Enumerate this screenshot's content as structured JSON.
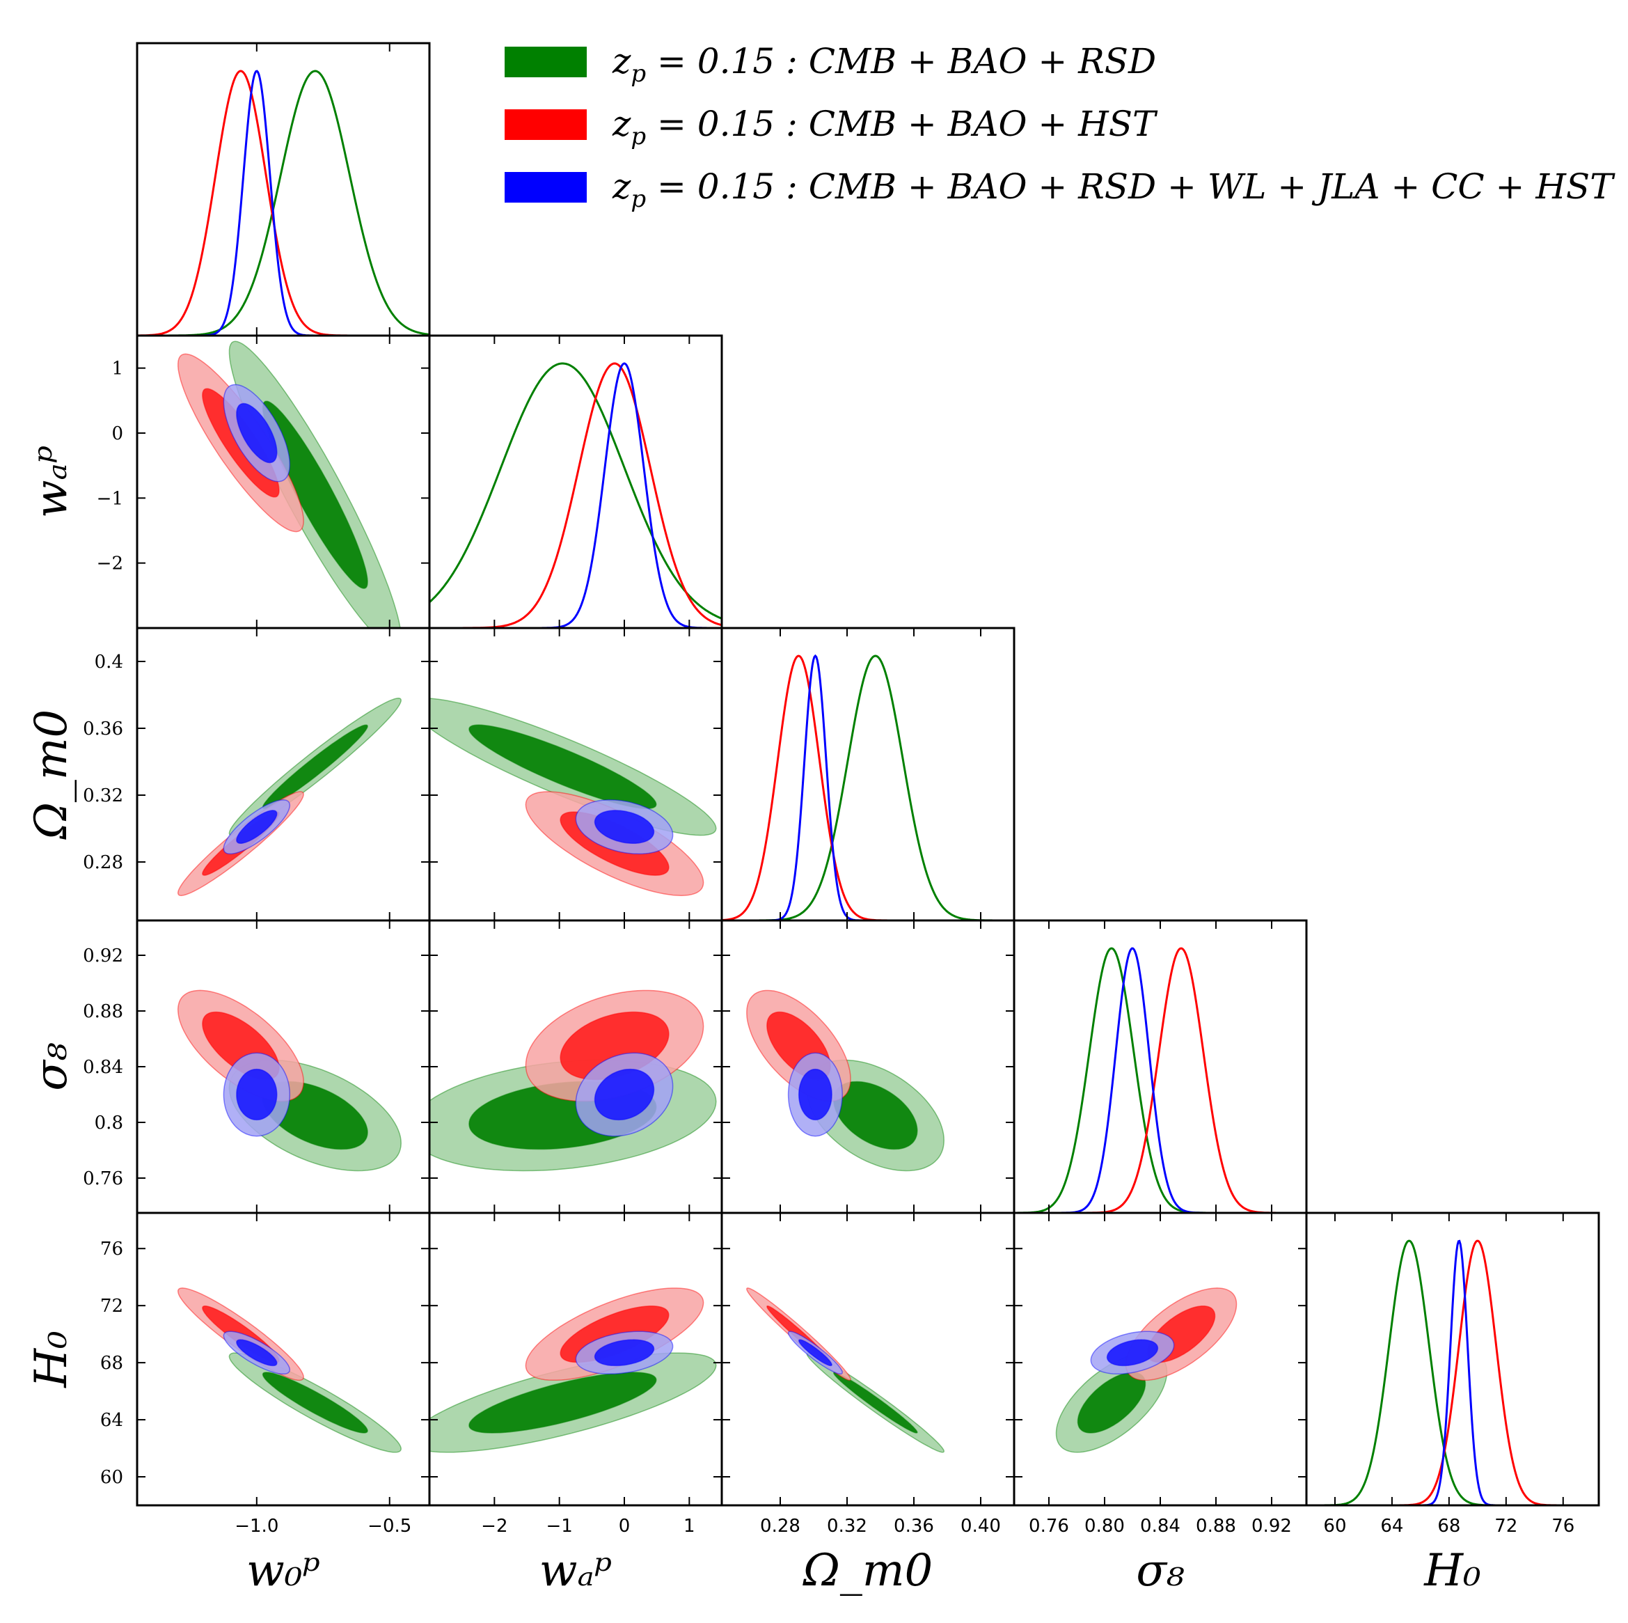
{
  "chart_data": {
    "type": "triangle-corner",
    "parameters": [
      {
        "label": "w₀ᵖ",
        "range": [
          -1.45,
          -0.35
        ],
        "ticks": [
          -1.0,
          -0.5
        ],
        "tick_labels": [
          "−1.0",
          "−0.5"
        ]
      },
      {
        "label": "wₐᵖ",
        "range": [
          -3.0,
          1.5
        ],
        "ticks": [
          -2,
          -1,
          0,
          1
        ],
        "tick_labels": [
          "−2",
          "−1",
          "0",
          "1"
        ]
      },
      {
        "label": "Ω_m0",
        "range": [
          0.245,
          0.42
        ],
        "ticks": [
          0.28,
          0.32,
          0.36,
          0.4
        ],
        "tick_labels": [
          "0.28",
          "0.32",
          "0.36",
          "0.40"
        ],
        "ytick_labels": [
          "0.28",
          "0.32",
          "0.36",
          "0.4"
        ]
      },
      {
        "label": "σ₈",
        "range": [
          0.735,
          0.945
        ],
        "ticks": [
          0.76,
          0.8,
          0.84,
          0.88,
          0.92
        ],
        "tick_labels": [
          "0.76",
          "0.80",
          "0.84",
          "0.88",
          "0.92"
        ],
        "ytick_labels": [
          "0.76",
          "0.8",
          "0.84",
          "0.88",
          "0.92"
        ]
      },
      {
        "label": "H₀",
        "range": [
          58,
          78.5
        ],
        "ticks": [
          60,
          64,
          68,
          72,
          76
        ],
        "tick_labels": [
          "60",
          "64",
          "68",
          "72",
          "76"
        ]
      }
    ],
    "legend": {
      "placement": "top-right",
      "entries": [
        {
          "series": "green",
          "prefix": "z",
          "sub": "p",
          "text": " = 0.15 :  CMB + BAO + RSD"
        },
        {
          "series": "red",
          "prefix": "z",
          "sub": "p",
          "text": " = 0.15 :  CMB + BAO + HST"
        },
        {
          "series": "blue",
          "prefix": "z",
          "sub": "p",
          "text": " = 0.15 :  CMB + BAO + RSD + WL + JLA + CC + HST"
        }
      ]
    },
    "series": [
      {
        "key": "green",
        "color": "#008000",
        "fill_1sigma": "#008000",
        "fill_2sigma": "#9fd09f",
        "mean": [
          -0.78,
          -0.95,
          0.337,
          0.805,
          65.2
        ],
        "sigma": [
          0.13,
          0.95,
          0.0165,
          0.016,
          1.4
        ],
        "corr": [
          [
            1,
            -0.93,
            0.97,
            -0.5,
            -0.93
          ],
          [
            -0.93,
            1,
            -0.9,
            0.25,
            0.75
          ],
          [
            0.97,
            -0.9,
            1,
            -0.45,
            -0.98
          ],
          [
            -0.5,
            0.25,
            -0.45,
            1,
            0.62
          ],
          [
            -0.93,
            0.75,
            -0.98,
            0.62,
            1
          ]
        ]
      },
      {
        "key": "red",
        "color": "#ff0000",
        "fill_1sigma": "#ff2020",
        "fill_2sigma": "#f8a3a3",
        "mean": [
          -1.06,
          -0.15,
          0.291,
          0.855,
          70.0
        ],
        "sigma": [
          0.095,
          0.55,
          0.0125,
          0.016,
          1.3
        ],
        "corr": [
          [
            1,
            -0.88,
            0.95,
            -0.65,
            -0.93
          ],
          [
            -0.88,
            1,
            -0.75,
            0.35,
            0.68
          ],
          [
            0.95,
            -0.75,
            1,
            -0.6,
            -0.98
          ],
          [
            -0.65,
            0.35,
            -0.6,
            1,
            0.65
          ],
          [
            -0.93,
            0.68,
            -0.98,
            0.65,
            1
          ]
        ]
      },
      {
        "key": "blue",
        "color": "#0000ff",
        "fill_1sigma": "#1a1aff",
        "fill_2sigma": "#a2a2f5",
        "mean": [
          -1.0,
          0.0,
          0.301,
          0.82,
          68.7
        ],
        "sigma": [
          0.05,
          0.3,
          0.0065,
          0.012,
          0.6
        ],
        "corr": [
          [
            1,
            -0.65,
            0.8,
            0.0,
            -0.8
          ],
          [
            -0.65,
            1,
            -0.3,
            0.2,
            0.3
          ],
          [
            0.8,
            -0.3,
            1,
            0.0,
            -0.93
          ],
          [
            0.0,
            0.2,
            0.0,
            1,
            0.35
          ],
          [
            -0.8,
            0.3,
            -0.93,
            0.35,
            1
          ]
        ]
      }
    ]
  }
}
